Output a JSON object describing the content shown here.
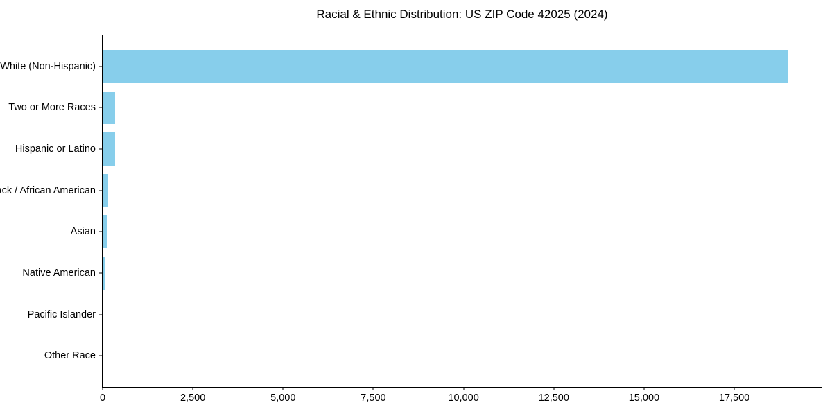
{
  "chart_data": {
    "type": "bar",
    "orientation": "horizontal",
    "title": "Racial & Ethnic Distribution: US ZIP Code 42025 (2024)",
    "categories": [
      "White (Non-Hispanic)",
      "Two or More Races",
      "Hispanic or Latino",
      "Black / African American",
      "Asian",
      "Native American",
      "Pacific Islander",
      "Other Race"
    ],
    "values": [
      18970,
      350,
      345,
      155,
      115,
      65,
      10,
      5
    ],
    "xlabel": "",
    "ylabel": "",
    "xlim": [
      0,
      19919
    ],
    "x_ticks": [
      {
        "value": 0,
        "label": "0"
      },
      {
        "value": 2500,
        "label": "2,500"
      },
      {
        "value": 5000,
        "label": "5,000"
      },
      {
        "value": 7500,
        "label": "7,500"
      },
      {
        "value": 10000,
        "label": "10,000"
      },
      {
        "value": 12500,
        "label": "12,500"
      },
      {
        "value": 15000,
        "label": "15,000"
      },
      {
        "value": 17500,
        "label": "17,500"
      }
    ],
    "bar_color": "#87CEEB",
    "grid": false,
    "legend_position": "none",
    "bar_height_fraction": 0.8
  }
}
